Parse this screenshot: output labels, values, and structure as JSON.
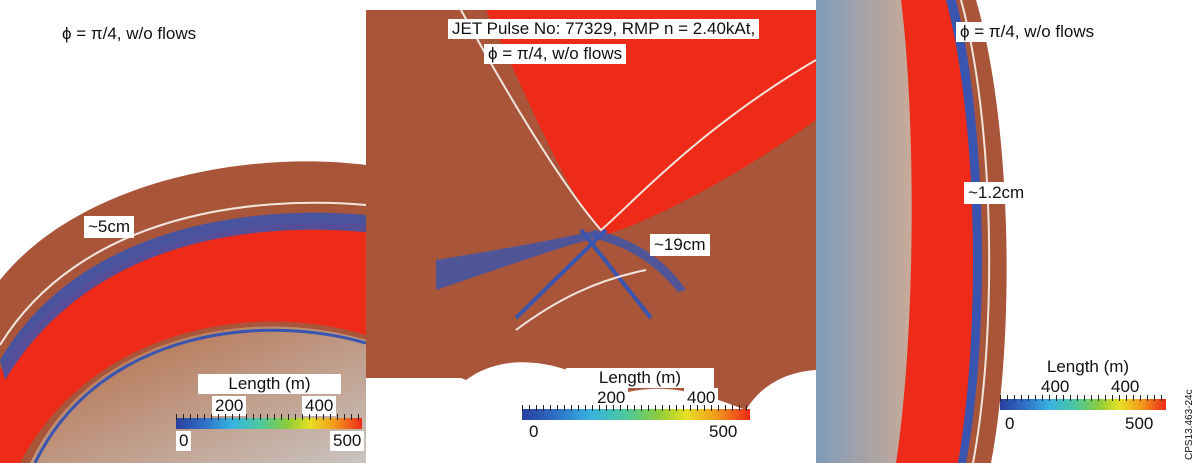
{
  "panels": {
    "left": {
      "annotation": "ϕ = π/4, w/o flows",
      "width_label": "~5cm",
      "colorbar": {
        "title": "Length (m)",
        "tick_top_a": "200",
        "tick_top_b": "400",
        "tick_bottom_min": "0",
        "tick_bottom_max": "500"
      }
    },
    "middle": {
      "title_line1": "JET Pulse No: 77329, RMP n = 2.40kAt,",
      "title_line2": "ϕ = π/4, w/o flows",
      "width_label": "~19cm",
      "colorbar": {
        "title": "Length (m)",
        "tick_top_a": "200",
        "tick_top_b": "400",
        "tick_bottom_min": "0",
        "tick_bottom_max": "500"
      }
    },
    "right": {
      "annotation": "ϕ = π/4, w/o flows",
      "width_label": "~1.2cm",
      "colorbar": {
        "title": "Length (m)",
        "tick_top_a": "400",
        "tick_top_b": "400",
        "tick_bottom_min": "0",
        "tick_bottom_max": "500"
      }
    }
  },
  "figure_code": "CPS13.463-24c",
  "colors": {
    "background_rust": "#a9553a",
    "field_red": "#ee2a18",
    "laminar_blue": "#3a55b0",
    "separatrix": "#f2e6dc",
    "colorbar_stops": [
      "#2a3f9e",
      "#37b3e0",
      "#8ccc3a",
      "#e7e024",
      "#ee2a18"
    ]
  }
}
